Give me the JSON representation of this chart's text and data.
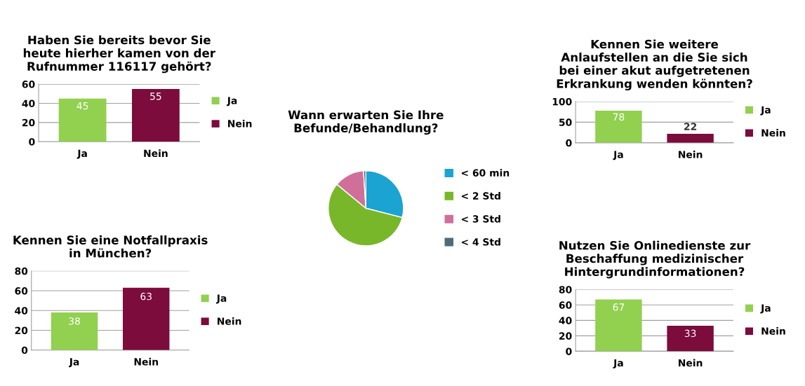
{
  "chart_data": [
    {
      "type": "bar",
      "title": "Haben Sie bereits bevor Sie\nheute hierher kamen von der\nRufnummer 116117 gehört?",
      "categories": [
        "Ja",
        "Nein"
      ],
      "series": [
        {
          "name": "Ja",
          "color": "#92d050",
          "values": [
            45,
            null
          ]
        },
        {
          "name": "Nein",
          "color": "#7b0c3c",
          "values": [
            null,
            55
          ]
        }
      ],
      "ylim": [
        0,
        60
      ],
      "yticks": [
        0,
        20,
        40,
        60
      ],
      "grid": "y",
      "legend": "right",
      "data_labels": true
    },
    {
      "type": "pie",
      "title": "Wann erwarten Sie Ihre\nBefunde/Behandlung?",
      "categories": [
        "< 60 min",
        "< 2 Std",
        "< 3 Std",
        "< 4 Std"
      ],
      "values": [
        29,
        57,
        13,
        1
      ],
      "colors": [
        "#1ba3d2",
        "#78b72a",
        "#d0709a",
        "#4f6b78"
      ],
      "legend": "right"
    },
    {
      "type": "bar",
      "title": "Kennen Sie weitere\nAnlaufstellen an die Sie sich\nbei einer akut aufgetretenen\nErkrankung wenden könnten?",
      "categories": [
        "Ja",
        "Nein"
      ],
      "series": [
        {
          "name": "Ja",
          "color": "#92d050",
          "values": [
            78,
            null
          ]
        },
        {
          "name": "Nein",
          "color": "#7b0c3c",
          "values": [
            null,
            22
          ]
        }
      ],
      "ylim": [
        0,
        100
      ],
      "yticks": [
        0,
        50,
        100
      ],
      "grid": "y",
      "legend": "right",
      "data_labels": true
    },
    {
      "type": "bar",
      "title": "Kennen Sie eine Notfallpraxis\nin München?",
      "categories": [
        "Ja",
        "Nein"
      ],
      "series": [
        {
          "name": "Ja",
          "color": "#92d050",
          "values": [
            38,
            null
          ]
        },
        {
          "name": "Nein",
          "color": "#7b0c3c",
          "values": [
            null,
            63
          ]
        }
      ],
      "ylim": [
        0,
        80
      ],
      "yticks": [
        0,
        20,
        40,
        60,
        80
      ],
      "grid": "y",
      "legend": "right",
      "data_labels": true
    },
    {
      "type": "bar",
      "title": "Nutzen Sie Onlinedienste zur\nBeschaffung medizinischer\nHintergrundinformationen?",
      "categories": [
        "Ja",
        "Nein"
      ],
      "series": [
        {
          "name": "Ja",
          "color": "#92d050",
          "values": [
            67,
            null
          ]
        },
        {
          "name": "Nein",
          "color": "#7b0c3c",
          "values": [
            null,
            33
          ]
        }
      ],
      "ylim": [
        0,
        80
      ],
      "yticks": [
        0,
        20,
        40,
        60,
        80
      ],
      "grid": "y",
      "legend": "right",
      "data_labels": true
    }
  ]
}
